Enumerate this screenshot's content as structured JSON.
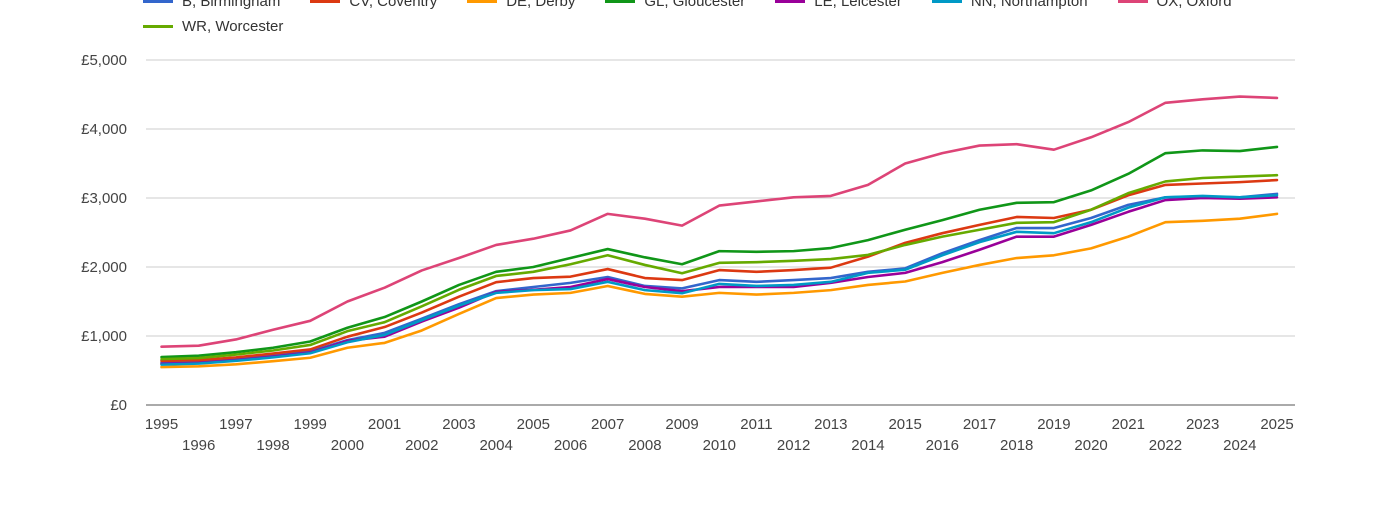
{
  "chart_data": {
    "type": "line",
    "title": "",
    "xlabel": "",
    "ylabel": "",
    "xlim": [
      1995,
      2025
    ],
    "ylim": [
      0,
      5000
    ],
    "grid": true,
    "legend_position": "top",
    "y_ticks": [
      {
        "value": 0,
        "label": "£0"
      },
      {
        "value": 1000,
        "label": "£1,000"
      },
      {
        "value": 2000,
        "label": "£2,000"
      },
      {
        "value": 3000,
        "label": "£3,000"
      },
      {
        "value": 4000,
        "label": "£4,000"
      },
      {
        "value": 5000,
        "label": "£5,000"
      }
    ],
    "x": [
      1995,
      1996,
      1997,
      1998,
      1999,
      2000,
      2001,
      2002,
      2003,
      2004,
      2005,
      2006,
      2007,
      2008,
      2009,
      2010,
      2011,
      2012,
      2013,
      2014,
      2015,
      2016,
      2017,
      2018,
      2019,
      2020,
      2021,
      2022,
      2023,
      2024,
      2025
    ],
    "series": [
      {
        "code": "b",
        "name": "B, Birmingham",
        "color": "#3366cc",
        "values": [
          610,
          620,
          660,
          715,
          775,
          940,
          1045,
          1250,
          1460,
          1650,
          1710,
          1770,
          1855,
          1725,
          1690,
          1810,
          1785,
          1810,
          1840,
          1930,
          1980,
          2200,
          2390,
          2565,
          2565,
          2710,
          2900,
          3010,
          3020,
          3010,
          3060
        ]
      },
      {
        "code": "cv",
        "name": "CV, Coventry",
        "color": "#dc3912",
        "values": [
          640,
          650,
          690,
          745,
          805,
          990,
          1130,
          1340,
          1570,
          1780,
          1840,
          1860,
          1970,
          1840,
          1810,
          1955,
          1930,
          1955,
          1990,
          2150,
          2350,
          2490,
          2610,
          2725,
          2710,
          2830,
          3040,
          3190,
          3210,
          3230,
          3260
        ]
      },
      {
        "code": "de",
        "name": "DE, Derby",
        "color": "#ff9900",
        "values": [
          550,
          560,
          590,
          635,
          685,
          830,
          900,
          1080,
          1320,
          1550,
          1600,
          1625,
          1725,
          1610,
          1570,
          1625,
          1600,
          1625,
          1665,
          1740,
          1790,
          1915,
          2030,
          2130,
          2170,
          2270,
          2440,
          2650,
          2670,
          2700,
          2770
        ]
      },
      {
        "code": "gl",
        "name": "GL, Gloucester",
        "color": "#109618",
        "values": [
          695,
          715,
          765,
          830,
          920,
          1120,
          1275,
          1500,
          1740,
          1930,
          2000,
          2130,
          2260,
          2140,
          2040,
          2230,
          2220,
          2230,
          2275,
          2390,
          2540,
          2680,
          2830,
          2930,
          2940,
          3110,
          3350,
          3650,
          3690,
          3680,
          3740
        ]
      },
      {
        "code": "le",
        "name": "LE, Leicester",
        "color": "#990099",
        "values": [
          595,
          610,
          650,
          700,
          760,
          930,
          990,
          1210,
          1410,
          1640,
          1670,
          1710,
          1825,
          1710,
          1650,
          1710,
          1710,
          1710,
          1770,
          1855,
          1915,
          2070,
          2250,
          2440,
          2440,
          2610,
          2800,
          2970,
          3000,
          2990,
          3010
        ]
      },
      {
        "code": "nn",
        "name": "NN, Northampton",
        "color": "#0099c6",
        "values": [
          585,
          600,
          640,
          690,
          750,
          910,
          1015,
          1230,
          1440,
          1625,
          1665,
          1680,
          1785,
          1665,
          1620,
          1755,
          1725,
          1740,
          1785,
          1915,
          1960,
          2170,
          2360,
          2510,
          2490,
          2650,
          2860,
          3010,
          3030,
          3010,
          3040
        ]
      },
      {
        "code": "ox",
        "name": "OX, Oxford",
        "color": "#dd4477",
        "values": [
          845,
          860,
          950,
          1090,
          1220,
          1500,
          1700,
          1950,
          2130,
          2320,
          2410,
          2530,
          2770,
          2700,
          2600,
          2890,
          2950,
          3010,
          3030,
          3190,
          3500,
          3650,
          3760,
          3780,
          3700,
          3880,
          4100,
          4380,
          4430,
          4470,
          4450
        ]
      },
      {
        "code": "wr",
        "name": "WR, Worcester",
        "color": "#66aa00",
        "values": [
          665,
          680,
          730,
          790,
          870,
          1070,
          1200,
          1430,
          1670,
          1870,
          1930,
          2040,
          2170,
          2030,
          1910,
          2060,
          2070,
          2090,
          2115,
          2175,
          2320,
          2440,
          2540,
          2640,
          2650,
          2830,
          3070,
          3240,
          3290,
          3310,
          3330
        ]
      }
    ]
  },
  "legend": {
    "rows": [
      [
        0,
        1,
        2,
        3,
        4,
        5,
        6
      ],
      [
        7
      ]
    ]
  }
}
